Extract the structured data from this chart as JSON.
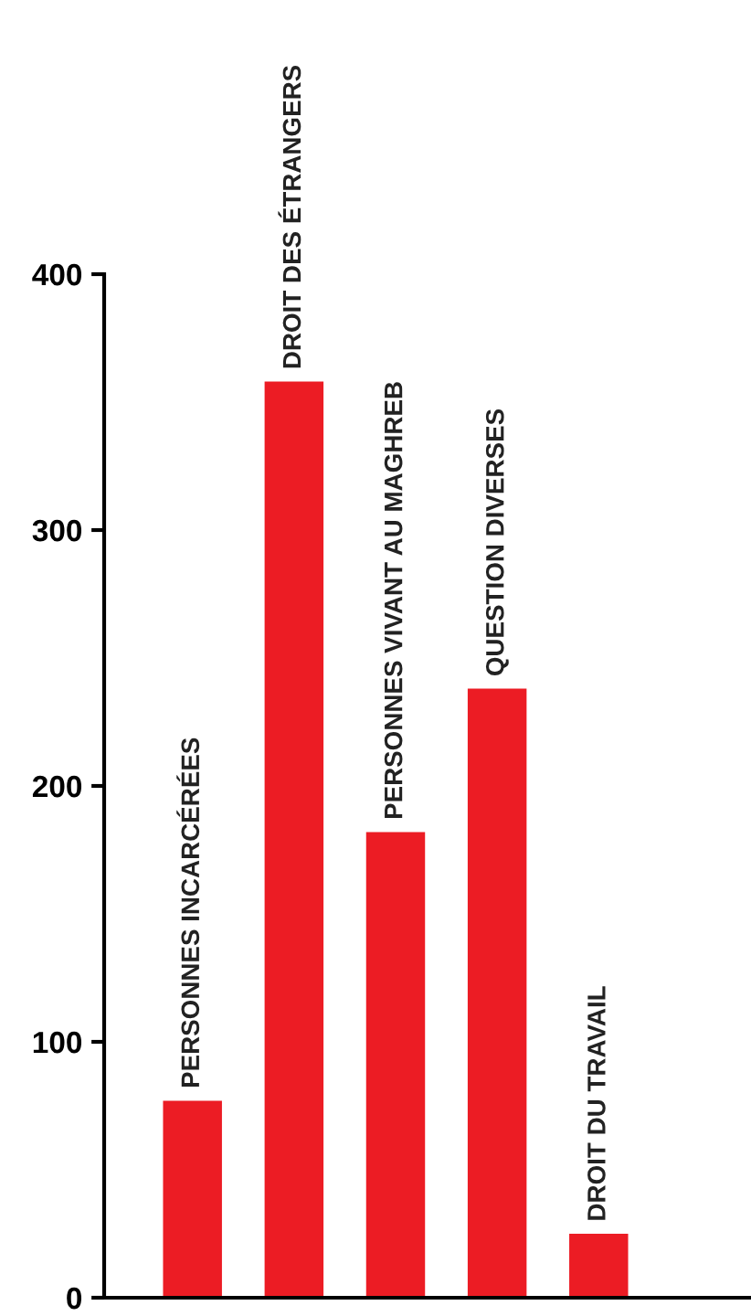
{
  "chart_data": {
    "type": "bar",
    "categories": [
      "PERSONNES INCARCÉRÉES",
      "DROIT DES ÉTRANGERS",
      "PERSONNES VIVANT AU MAGHREB",
      "QUESTION DIVERSES",
      "DROIT DU TRAVAIL"
    ],
    "values": [
      77,
      358,
      182,
      238,
      25
    ],
    "color": "#ec1c24",
    "ylim": [
      0,
      400
    ],
    "yticks": [
      0,
      100,
      200,
      300,
      400
    ],
    "grid": false,
    "legend": false
  }
}
